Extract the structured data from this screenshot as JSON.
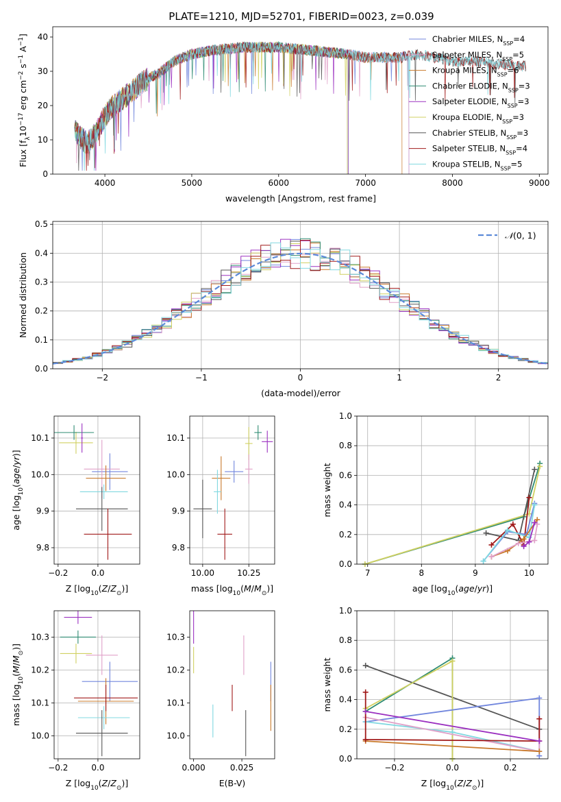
{
  "figure": {
    "title": "PLATE=1210, MJD=52701, FIBERID=0023, z=0.039"
  },
  "colors": [
    "#7085dd",
    "#e0a0c8",
    "#c8782a",
    "#2e8b72",
    "#9b30c0",
    "#d0d060",
    "#555555",
    "#a01818",
    "#80d8e0"
  ],
  "chart_data": [
    {
      "id": "spectrum",
      "type": "line",
      "xlabel": "wavelength [Angstrom, rest frame]",
      "ylabel": "Flux [fλ10⁻¹⁷ erg cm⁻² s⁻¹ A⁻¹]",
      "xlim": [
        3400,
        9100
      ],
      "ylim": [
        0,
        43
      ],
      "xticks": [
        4000,
        5000,
        6000,
        7000,
        8000,
        9000
      ],
      "yticks": [
        0,
        10,
        20,
        30,
        40
      ],
      "grid": false,
      "legend_position": "top-right",
      "spectrum_anchor_points": {
        "x": [
          3650,
          3700,
          3800,
          3900,
          4000,
          4100,
          4200,
          4300,
          4400,
          4500,
          4600,
          4700,
          4800,
          4900,
          5000,
          5200,
          5400,
          5600,
          5800,
          6000,
          6200,
          6400,
          6600,
          6800,
          7000,
          7200,
          7400,
          7600,
          7800,
          8000,
          8200,
          8400,
          8600,
          8800
        ],
        "y": [
          14,
          11,
          9,
          12,
          17,
          20,
          22,
          24,
          26,
          28,
          29,
          31,
          33,
          34,
          35,
          36,
          36.5,
          37,
          37,
          37,
          36.5,
          36,
          35.5,
          35,
          34,
          34,
          34,
          35,
          34,
          33,
          33,
          32.5,
          32,
          31.5
        ]
      },
      "series": [
        {
          "name": "Chabrier MILES, N_SSP=4",
          "label_main": "Chabrier MILES, N",
          "label_sub": "SSP",
          "label_tail": "=4",
          "end_x": 7500
        },
        {
          "name": "Salpeter MILES, N_SSP=5",
          "label_main": "Salpeter MILES, N",
          "label_sub": "SSP",
          "label_tail": "=5",
          "end_x": 7500
        },
        {
          "name": "Kroupa MILES, N_SSP=6",
          "label_main": "Kroupa MILES, N",
          "label_sub": "SSP",
          "label_tail": "=6",
          "end_x": 7420
        },
        {
          "name": "Chabrier ELODIE, N_SSP=3",
          "label_main": "Chabrier ELODIE, N",
          "label_sub": "SSP",
          "label_tail": "=3",
          "end_x": 6800
        },
        {
          "name": "Salpeter ELODIE, N_SSP=3",
          "label_main": "Salpeter ELODIE, N",
          "label_sub": "SSP",
          "label_tail": "=3",
          "end_x": 6800
        },
        {
          "name": "Kroupa ELODIE, N_SSP=3",
          "label_main": "Kroupa ELODIE, N",
          "label_sub": "SSP",
          "label_tail": "=3",
          "end_x": 6790
        },
        {
          "name": "Chabrier STELIB, N_SSP=3",
          "label_main": "Chabrier STELIB, N",
          "label_sub": "SSP",
          "label_tail": "=3",
          "end_x": 8850
        },
        {
          "name": "Salpeter STELIB, N_SSP=4",
          "label_main": "Salpeter STELIB, N",
          "label_sub": "SSP",
          "label_tail": "=4",
          "end_x": 8850
        },
        {
          "name": "Kroupa STELIB, N_SSP=5",
          "label_main": "Kroupa STELIB, N",
          "label_sub": "SSP",
          "label_tail": "=5",
          "end_x": 8850
        }
      ]
    },
    {
      "id": "residuals",
      "type": "histogram",
      "xlabel": "(data-model)/error",
      "ylabel": "Normed distribution",
      "xlim": [
        -2.5,
        2.5
      ],
      "ylim": [
        0,
        0.51
      ],
      "xticks": [
        -2,
        -1,
        0,
        1,
        2
      ],
      "yticks": [
        0.0,
        0.1,
        0.2,
        0.3,
        0.4,
        0.5
      ],
      "grid": true,
      "legend_position": "top-right",
      "legend_label": "N(0, 1)",
      "reference_curve": "normal pdf, mean 0, sigma 1",
      "bin_width": 0.1
    },
    {
      "id": "age_vs_Z",
      "type": "scatter_errorbar",
      "xlabel": "Z [log10(Z/Z⊙)]",
      "ylabel": "age  [log10(age/yr)]",
      "xlim": [
        -0.22,
        0.21
      ],
      "ylim": [
        9.755,
        10.16
      ],
      "xticks": [
        -0.2,
        0.0
      ],
      "yticks": [
        9.8,
        9.9,
        10.0,
        10.1
      ],
      "grid": true,
      "points": [
        {
          "x": -0.11,
          "y": 10.087,
          "xerr": 0.085,
          "yerr": 0.03,
          "color": 5
        },
        {
          "x": -0.12,
          "y": 10.115,
          "xerr": 0.1,
          "yerr": 0.02,
          "color": 3
        },
        {
          "x": -0.08,
          "y": 10.1,
          "xerr": 0.005,
          "yerr": 0.04,
          "color": 4
        },
        {
          "x": 0.06,
          "y": 10.008,
          "xerr": 0.09,
          "yerr": 0.05,
          "color": 0
        },
        {
          "x": 0.02,
          "y": 10.015,
          "xerr": 0.09,
          "yerr": 0.08,
          "color": 1
        },
        {
          "x": 0.04,
          "y": 9.99,
          "xerr": 0.1,
          "yerr": 0.035,
          "color": 2
        },
        {
          "x": 0.03,
          "y": 9.953,
          "xerr": 0.12,
          "yerr": 0.02,
          "color": 8
        },
        {
          "x": 0.02,
          "y": 9.906,
          "xerr": 0.13,
          "yerr": 0.06,
          "color": 6
        },
        {
          "x": 0.05,
          "y": 9.837,
          "xerr": 0.12,
          "yerr": 0.07,
          "color": 7
        }
      ]
    },
    {
      "id": "age_vs_mass",
      "type": "scatter_errorbar",
      "xlabel": "mass [log10(M/M⊙)]",
      "ylabel": "",
      "xlim": [
        9.93,
        10.39
      ],
      "ylim": [
        9.755,
        10.16
      ],
      "xticks": [
        10.0,
        10.25
      ],
      "yticks": [
        9.8,
        9.9,
        10.0,
        10.1
      ],
      "grid": true,
      "points": [
        {
          "x": 10.3,
          "y": 10.115,
          "xerr": 0.02,
          "yerr": 0.02,
          "color": 3
        },
        {
          "x": 10.25,
          "y": 10.085,
          "xerr": 0.02,
          "yerr": 0.045,
          "color": 5
        },
        {
          "x": 10.35,
          "y": 10.09,
          "xerr": 0.03,
          "yerr": 0.03,
          "color": 4
        },
        {
          "x": 10.25,
          "y": 10.015,
          "xerr": 0.02,
          "yerr": 0.04,
          "color": 1
        },
        {
          "x": 10.17,
          "y": 10.008,
          "xerr": 0.05,
          "yerr": 0.03,
          "color": 0
        },
        {
          "x": 10.1,
          "y": 9.99,
          "xerr": 0.05,
          "yerr": 0.06,
          "color": 2
        },
        {
          "x": 10.08,
          "y": 9.953,
          "xerr": 0.02,
          "yerr": 0.06,
          "color": 8
        },
        {
          "x": 10.0,
          "y": 9.906,
          "xerr": 0.05,
          "yerr": 0.08,
          "color": 6
        },
        {
          "x": 10.12,
          "y": 9.837,
          "xerr": 0.04,
          "yerr": 0.07,
          "color": 7
        }
      ]
    },
    {
      "id": "mass_weight_vs_age",
      "type": "line",
      "xlabel": "age  [log10(age/yr)]",
      "ylabel": "mass weight",
      "xlim": [
        6.8,
        10.35
      ],
      "ylim": [
        0,
        1.0
      ],
      "xticks": [
        7,
        8,
        9,
        10
      ],
      "yticks": [
        0.0,
        0.2,
        0.4,
        0.6,
        0.8,
        1.0
      ],
      "grid": true,
      "series": [
        {
          "color": 3,
          "x": [
            6.95,
            9.9,
            10.2
          ],
          "y": [
            0.0,
            0.32,
            0.68
          ]
        },
        {
          "color": 5,
          "x": [
            6.95,
            10.0,
            10.2
          ],
          "y": [
            0.0,
            0.34,
            0.66
          ]
        },
        {
          "color": 6,
          "x": [
            9.2,
            9.8,
            10.1
          ],
          "y": [
            0.21,
            0.16,
            0.64
          ]
        },
        {
          "color": 7,
          "x": [
            9.3,
            9.7,
            9.9,
            10.0
          ],
          "y": [
            0.13,
            0.27,
            0.13,
            0.45
          ]
        },
        {
          "color": 0,
          "x": [
            9.15,
            9.6,
            9.95,
            10.1
          ],
          "y": [
            0.02,
            0.22,
            0.2,
            0.41
          ]
        },
        {
          "color": 8,
          "x": [
            9.15,
            9.6,
            10.0,
            10.1
          ],
          "y": [
            0.02,
            0.23,
            0.18,
            0.4
          ]
        },
        {
          "color": 2,
          "x": [
            9.3,
            9.6,
            9.9,
            10.15
          ],
          "y": [
            0.05,
            0.09,
            0.17,
            0.3
          ]
        },
        {
          "color": 1,
          "x": [
            9.3,
            9.8,
            10.1,
            10.15
          ],
          "y": [
            0.05,
            0.14,
            0.16,
            0.27
          ]
        },
        {
          "color": 4,
          "x": [
            9.9,
            10.0,
            10.1
          ],
          "y": [
            0.12,
            0.15,
            0.28
          ]
        }
      ]
    },
    {
      "id": "mass_vs_Z",
      "type": "scatter_errorbar",
      "xlabel": "Z [log10(Z/Z⊙)]",
      "ylabel": "mass [log10(M/M⊙)]",
      "xlim": [
        -0.22,
        0.21
      ],
      "ylim": [
        9.93,
        10.38
      ],
      "xticks": [
        -0.2,
        0.0
      ],
      "yticks": [
        10.0,
        10.1,
        10.2,
        10.3
      ],
      "grid": true,
      "points": [
        {
          "x": -0.1,
          "y": 10.36,
          "xerr": 0.07,
          "yerr": 0.02,
          "color": 4
        },
        {
          "x": -0.1,
          "y": 10.3,
          "xerr": 0.09,
          "yerr": 0.02,
          "color": 3
        },
        {
          "x": -0.11,
          "y": 10.25,
          "xerr": 0.08,
          "yerr": 0.03,
          "color": 5
        },
        {
          "x": 0.02,
          "y": 10.245,
          "xerr": 0.08,
          "yerr": 0.06,
          "color": 1
        },
        {
          "x": 0.06,
          "y": 10.165,
          "xerr": 0.14,
          "yerr": 0.06,
          "color": 0
        },
        {
          "x": 0.04,
          "y": 10.105,
          "xerr": 0.14,
          "yerr": 0.07,
          "color": 2
        },
        {
          "x": 0.04,
          "y": 10.115,
          "xerr": 0.16,
          "yerr": 0.04,
          "color": 7
        },
        {
          "x": 0.03,
          "y": 10.055,
          "xerr": 0.13,
          "yerr": 0.035,
          "color": 8
        },
        {
          "x": 0.02,
          "y": 10.008,
          "xerr": 0.13,
          "yerr": 0.07,
          "color": 6
        }
      ]
    },
    {
      "id": "mass_vs_EBV",
      "type": "scatter_errorbar",
      "xlabel": "E(B-V)",
      "ylabel": "",
      "xlim": [
        -0.002,
        0.042
      ],
      "ylim": [
        9.93,
        10.38
      ],
      "xticks": [
        0.0,
        0.025
      ],
      "yticks": [
        10.0,
        10.1,
        10.2,
        10.3
      ],
      "grid": false,
      "points": [
        {
          "x": 0.0,
          "y": 10.33,
          "xerr": 0,
          "yerr": 0.05,
          "color": 4
        },
        {
          "x": 0.0,
          "y": 10.23,
          "xerr": 0,
          "yerr": 0.04,
          "color": 5
        },
        {
          "x": 0.026,
          "y": 10.245,
          "xerr": 0,
          "yerr": 0.06,
          "color": 1
        },
        {
          "x": 0.04,
          "y": 10.165,
          "xerr": 0,
          "yerr": 0.06,
          "color": 0
        },
        {
          "x": 0.04,
          "y": 10.085,
          "xerr": 0,
          "yerr": 0.07,
          "color": 2
        },
        {
          "x": 0.02,
          "y": 10.115,
          "xerr": 0,
          "yerr": 0.04,
          "color": 7
        },
        {
          "x": 0.01,
          "y": 10.045,
          "xerr": 0,
          "yerr": 0.05,
          "color": 8
        },
        {
          "x": 0.027,
          "y": 10.008,
          "xerr": 0,
          "yerr": 0.07,
          "color": 6
        }
      ]
    },
    {
      "id": "mass_weight_vs_Z",
      "type": "line",
      "xlabel": "Z [log10(Z/Z⊙)]",
      "ylabel": "mass weight",
      "xlim": [
        -0.33,
        0.33
      ],
      "ylim": [
        0,
        1.0
      ],
      "xticks": [
        -0.2,
        0.0,
        0.2
      ],
      "yticks": [
        0.0,
        0.2,
        0.4,
        0.6,
        0.8,
        1.0
      ],
      "grid": true,
      "series": [
        {
          "color": 6,
          "x": [
            -0.3,
            0.3
          ],
          "y": [
            0.63,
            0.2
          ]
        },
        {
          "color": 3,
          "x": [
            -0.3,
            0.0,
            0.0
          ],
          "y": [
            0.32,
            0.68,
            0.0
          ]
        },
        {
          "color": 5,
          "x": [
            -0.3,
            0.0,
            0.0
          ],
          "y": [
            0.34,
            0.66,
            0.0
          ]
        },
        {
          "color": 0,
          "x": [
            -0.3,
            0.3,
            0.3
          ],
          "y": [
            0.25,
            0.41,
            0.02
          ]
        },
        {
          "color": 8,
          "x": [
            -0.3,
            0.0,
            0.3
          ],
          "y": [
            0.25,
            0.18,
            0.05
          ]
        },
        {
          "color": 1,
          "x": [
            -0.3,
            0.3,
            0.3
          ],
          "y": [
            0.28,
            0.05,
            0.27
          ]
        },
        {
          "color": 2,
          "x": [
            -0.3,
            0.3
          ],
          "y": [
            0.12,
            0.05
          ]
        },
        {
          "color": 7,
          "x": [
            -0.3,
            -0.3,
            0.3,
            0.3
          ],
          "y": [
            0.45,
            0.13,
            0.12,
            0.27
          ]
        },
        {
          "color": 4,
          "x": [
            -0.3,
            0.3
          ],
          "y": [
            0.32,
            0.12
          ]
        }
      ]
    }
  ]
}
